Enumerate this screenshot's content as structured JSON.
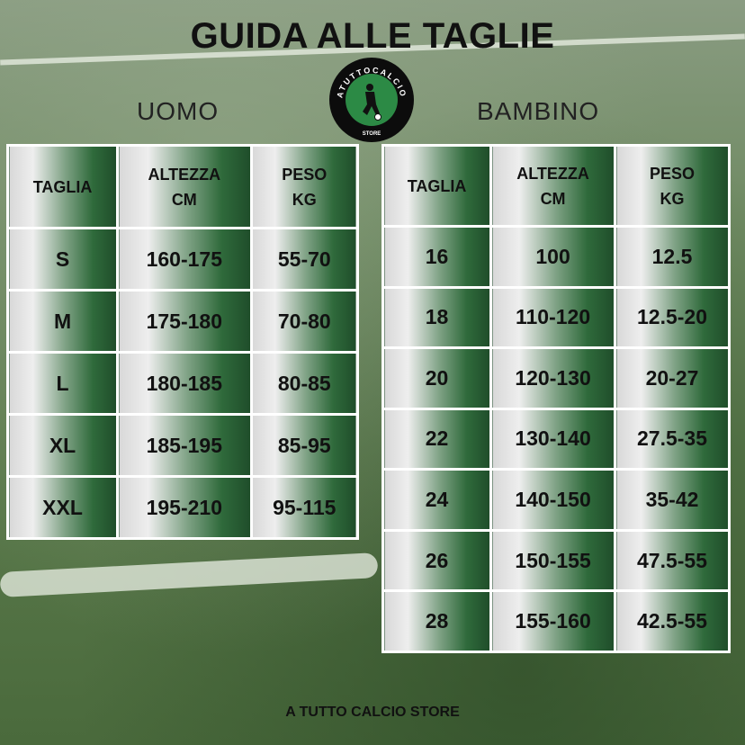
{
  "title": "GUIDA ALLE TAGLIE",
  "logo": {
    "text": "ATUTTOCALCIO",
    "sub": "STORE",
    "colors": {
      "ring": "#0c0c0c",
      "center": "#2c8a45"
    }
  },
  "uomo": {
    "label": "UOMO",
    "headers": [
      "TAGLIA",
      "ALTEZZA\nCM",
      "PESO\nKG"
    ],
    "rows": [
      [
        "S",
        "160-175",
        "55-70"
      ],
      [
        "M",
        "175-180",
        "70-80"
      ],
      [
        "L",
        "180-185",
        "80-85"
      ],
      [
        "XL",
        "185-195",
        "85-95"
      ],
      [
        "XXL",
        "195-210",
        "95-115"
      ]
    ]
  },
  "bambino": {
    "label": "BAMBINO",
    "headers": [
      "TAGLIA",
      "ALTEZZA\nCM",
      "PESO\nKG"
    ],
    "rows": [
      [
        "16",
        "100",
        "12.5"
      ],
      [
        "18",
        "110-120",
        "12.5-20"
      ],
      [
        "20",
        "120-130",
        "20-27"
      ],
      [
        "22",
        "130-140",
        "27.5-35"
      ],
      [
        "24",
        "140-150",
        "35-42"
      ],
      [
        "26",
        "150-155",
        "47.5-55"
      ],
      [
        "28",
        "155-160",
        "42.5-55"
      ]
    ]
  },
  "footer": "A TUTTO CALCIO STORE"
}
